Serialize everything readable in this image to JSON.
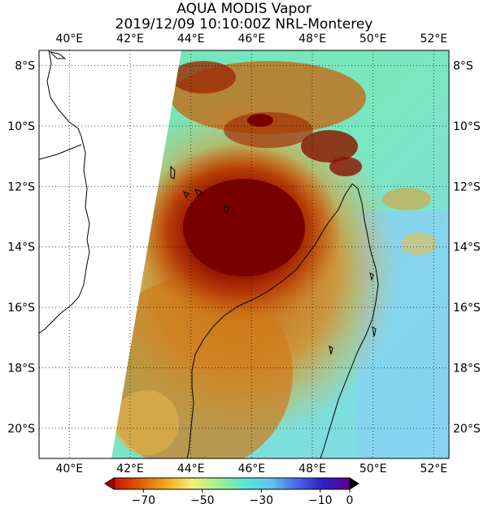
{
  "title": {
    "line1": "AQUA MODIS Vapor",
    "line2": "2019/12/09 10:10:00Z NRL-Monterey"
  },
  "map": {
    "lon_labels": [
      "40°E",
      "42°E",
      "44°E",
      "46°E",
      "48°E",
      "50°E",
      "52°E"
    ],
    "lat_labels": [
      "8°S",
      "10°S",
      "12°S",
      "14°S",
      "16°S",
      "18°S",
      "20°S"
    ],
    "lon_range": [
      39,
      52.5
    ],
    "lat_range": [
      -21,
      -7.5
    ],
    "grid": "dotted"
  },
  "colorbar": {
    "ticks": [
      "−70",
      "−50",
      "−30",
      "−10",
      "0"
    ],
    "range": [
      -80,
      0
    ],
    "colors": [
      "#c81408",
      "#dd5d00",
      "#f0a820",
      "#f7f07a",
      "#9ef08c",
      "#56e8d4",
      "#62c4f0",
      "#4a66e6",
      "#2820c0",
      "#600090"
    ]
  }
}
